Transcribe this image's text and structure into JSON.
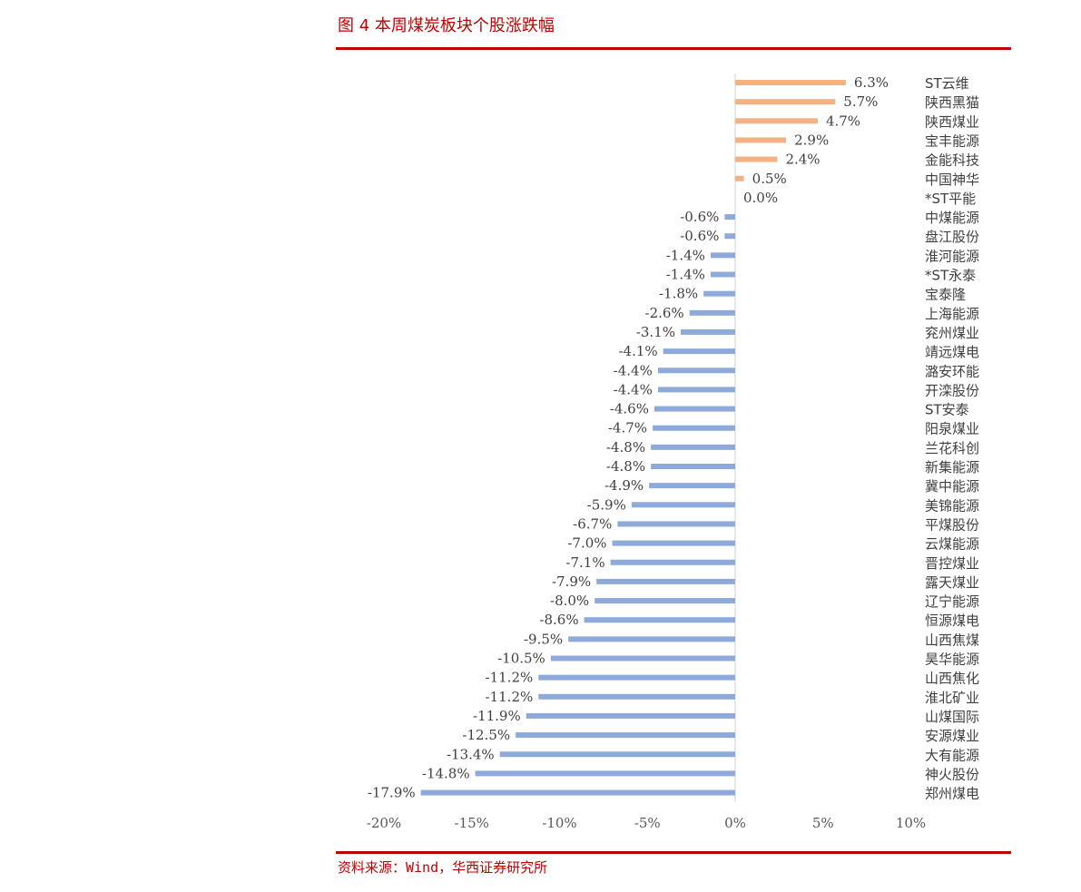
{
  "figure": {
    "title": "图 4  本周煤炭板块个股涨跌幅",
    "source": "资料来源：Wind，华西证券研究所"
  },
  "colors": {
    "positive": "#f4b183",
    "negative": "#8eaadb",
    "rule": "#c00000",
    "axis": "#d9d9d9"
  },
  "chart_data": {
    "type": "bar",
    "orientation": "horizontal",
    "title": "",
    "xlabel": "",
    "ylabel": "",
    "xlim": [
      -20,
      10
    ],
    "ticks": [
      -20,
      -15,
      -10,
      -5,
      0,
      5,
      10
    ],
    "tick_labels": [
      "-20%",
      "-15%",
      "-10%",
      "-5%",
      "0%",
      "5%",
      "10%"
    ],
    "grid": false,
    "legend": "none",
    "categories": [
      "ST云维",
      "陕西黑猫",
      "陕西煤业",
      "宝丰能源",
      "金能科技",
      "中国神华",
      "*ST平能",
      "中煤能源",
      "盘江股份",
      "淮河能源",
      "*ST永泰",
      "宝泰隆",
      "上海能源",
      "兖州煤业",
      "靖远煤电",
      "潞安环能",
      "开滦股份",
      "ST安泰",
      "阳泉煤业",
      "兰花科创",
      "新集能源",
      "冀中能源",
      "美锦能源",
      "平煤股份",
      "云煤能源",
      "晋控煤业",
      "露天煤业",
      "辽宁能源",
      "恒源煤电",
      "山西焦煤",
      "昊华能源",
      "山西焦化",
      "淮北矿业",
      "山煤国际",
      "安源煤业",
      "大有能源",
      "神火股份",
      "郑州煤电"
    ],
    "values": [
      6.3,
      5.7,
      4.7,
      2.9,
      2.4,
      0.5,
      0.0,
      -0.6,
      -0.6,
      -1.4,
      -1.4,
      -1.8,
      -2.6,
      -3.1,
      -4.1,
      -4.4,
      -4.4,
      -4.6,
      -4.7,
      -4.8,
      -4.8,
      -4.9,
      -5.9,
      -6.7,
      -7.0,
      -7.1,
      -7.9,
      -8.0,
      -8.6,
      -9.5,
      -10.5,
      -11.2,
      -11.2,
      -11.9,
      -12.5,
      -13.4,
      -14.8,
      -17.9
    ],
    "value_labels": [
      "6.3%",
      "5.7%",
      "4.7%",
      "2.9%",
      "2.4%",
      "0.5%",
      "0.0%",
      "-0.6%",
      "-0.6%",
      "-1.4%",
      "-1.4%",
      "-1.8%",
      "-2.6%",
      "-3.1%",
      "-4.1%",
      "-4.4%",
      "-4.4%",
      "-4.6%",
      "-4.7%",
      "-4.8%",
      "-4.8%",
      "-4.9%",
      "-5.9%",
      "-6.7%",
      "-7.0%",
      "-7.1%",
      "-7.9%",
      "-8.0%",
      "-8.6%",
      "-9.5%",
      "-10.5%",
      "-11.2%",
      "-11.2%",
      "-11.9%",
      "-12.5%",
      "-13.4%",
      "-14.8%",
      "-17.9%"
    ]
  }
}
